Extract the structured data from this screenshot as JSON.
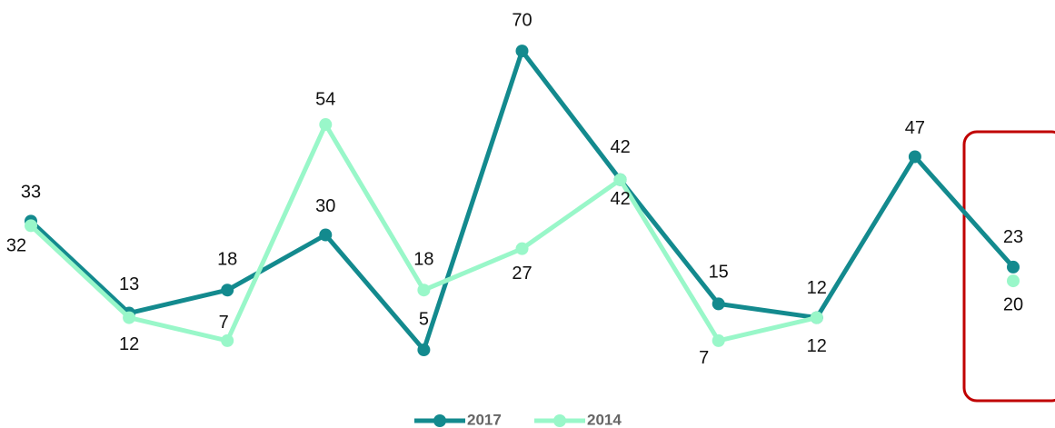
{
  "chart_data": {
    "type": "line",
    "categories": [
      null,
      null,
      null,
      null,
      null,
      null,
      null,
      null,
      null,
      null,
      null
    ],
    "series": [
      {
        "name": "2017",
        "color": "#138a8e",
        "values": [
          33,
          13,
          18,
          30,
          5,
          70,
          42,
          15,
          12,
          47,
          23
        ]
      },
      {
        "name": "2014",
        "color": "#99f7c9",
        "values": [
          32,
          12,
          7,
          54,
          18,
          27,
          42,
          7,
          12,
          null,
          20
        ]
      }
    ],
    "legend": "bottom"
  }
}
